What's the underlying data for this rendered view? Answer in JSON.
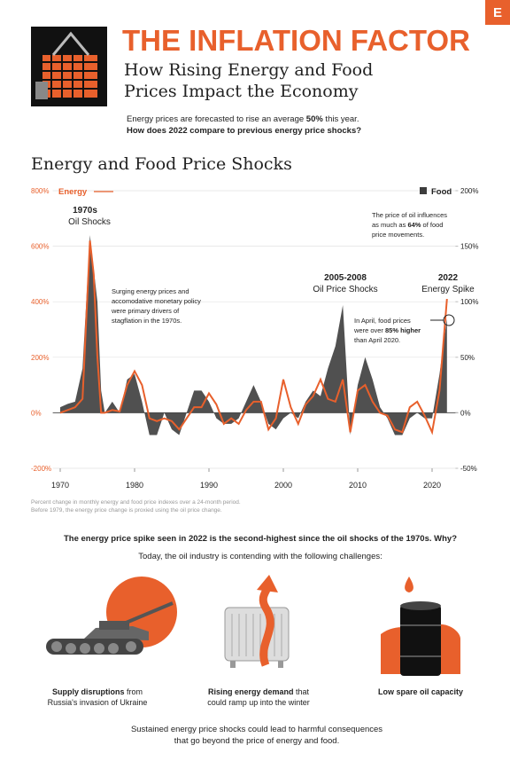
{
  "header": {
    "title": "THE INFLATION FACTOR",
    "subtitle": [
      "How Rising Energy and Food",
      "Prices Impact the Economy"
    ],
    "logo": "E"
  },
  "intro": {
    "line1": [
      "Energy prices are forecasted to rise an average ",
      "50%",
      " this year."
    ],
    "line2": "How does 2022 compare to previous energy price shocks?"
  },
  "chart_data": {
    "type": "line",
    "title": "Energy and Food Price Shocks",
    "x": [
      1970,
      1971,
      1972,
      1973,
      1974,
      1974.5,
      1975,
      1975.5,
      1976,
      1977,
      1978,
      1979,
      1980,
      1981,
      1982,
      1983,
      1984,
      1985,
      1986,
      1987,
      1988,
      1989,
      1990,
      1991,
      1992,
      1993,
      1994,
      1995,
      1996,
      1997,
      1998,
      1999,
      2000,
      2001,
      2002,
      2003,
      2004,
      2005,
      2006,
      2007,
      2008,
      2009,
      2010,
      2011,
      2012,
      2013,
      2014,
      2015,
      2016,
      2017,
      2018,
      2019,
      2020,
      2021,
      2022
    ],
    "series": [
      {
        "name": "Energy",
        "type": "line",
        "color": "#e8602c",
        "axis": "y",
        "values": [
          0,
          10,
          20,
          50,
          620,
          500,
          200,
          0,
          0,
          10,
          5,
          100,
          150,
          100,
          -20,
          -30,
          -20,
          -30,
          -60,
          -20,
          20,
          20,
          70,
          30,
          -40,
          -20,
          -40,
          10,
          40,
          40,
          -60,
          -20,
          120,
          20,
          -40,
          30,
          60,
          120,
          50,
          40,
          120,
          -70,
          80,
          100,
          40,
          0,
          -10,
          -60,
          -70,
          20,
          40,
          -10,
          -70,
          80,
          410
        ]
      },
      {
        "name": "Food",
        "type": "area",
        "color": "#3d3d3d",
        "axis": "y2",
        "values": [
          5,
          8,
          10,
          40,
          160,
          130,
          100,
          20,
          0,
          10,
          0,
          30,
          35,
          10,
          -20,
          -20,
          0,
          -15,
          -20,
          0,
          20,
          20,
          10,
          -5,
          -10,
          -10,
          -5,
          10,
          25,
          10,
          -10,
          -15,
          -5,
          0,
          -5,
          10,
          20,
          15,
          40,
          60,
          97,
          -20,
          25,
          50,
          30,
          5,
          -5,
          -20,
          -20,
          -5,
          0,
          -5,
          -5,
          35,
          85
        ]
      }
    ],
    "xlim": [
      1969,
      2023.5
    ],
    "xticks": [
      1970,
      1980,
      1990,
      2000,
      2010,
      2020
    ],
    "ylim": [
      -200,
      800
    ],
    "yticks": [
      {
        "value": -200,
        "label": "-200%"
      },
      {
        "value": 0,
        "label": "0%"
      },
      {
        "value": 200,
        "label": "200%"
      },
      {
        "value": 400,
        "label": "400%"
      },
      {
        "value": 600,
        "label": "600%"
      },
      {
        "value": 800,
        "label": "800%"
      }
    ],
    "y2lim": [
      -50,
      200
    ],
    "y2ticks": [
      {
        "value": -50,
        "label": "-50%"
      },
      {
        "value": 0,
        "label": "0%"
      },
      {
        "value": 50,
        "label": "50%"
      },
      {
        "value": 100,
        "label": "100%"
      },
      {
        "value": 150,
        "label": "150%"
      },
      {
        "value": 200,
        "label": "200%"
      }
    ],
    "grid": true,
    "annotations": {
      "seventies": [
        "1970s",
        "Oil Shocks"
      ],
      "twothousands": [
        "2005-2008",
        "Oil Price Shocks"
      ],
      "spike": [
        "2022",
        "Energy Spike"
      ],
      "stagflation": [
        "Surging energy prices and",
        "accomodative monetary policy",
        "were primary drivers of",
        "stagflation in the 1970s."
      ],
      "oil": [
        [
          "The price of oil influences"
        ],
        [
          "as much as ",
          "64%",
          " of food"
        ],
        [
          "price movements."
        ]
      ],
      "april": [
        [
          "In April, food prices"
        ],
        [
          "were over ",
          "85% higher"
        ],
        [
          "than April 2020."
        ]
      ]
    },
    "footnote": [
      "Percent change in monthly energy and food price indexes over a 24-month period.",
      "Before 1979, the energy price change is proxied using the oil price change."
    ]
  },
  "outro": {
    "headline": "The energy price spike seen in 2022 is the second-highest since the oil shocks of the 1970s. Why?",
    "lead": "Today, the oil industry is contending with the following challenges:",
    "challenges": [
      [
        [
          "Supply disruptions",
          " from"
        ],
        [
          "Russia's invasion of Ukraine"
        ]
      ],
      [
        [
          "Rising energy demand",
          " that"
        ],
        [
          "could ramp up into the winter"
        ]
      ],
      [
        [
          "Low spare oil capacity"
        ]
      ]
    ],
    "closing": [
      "Sustained energy price shocks could lead to harmful consequences",
      "that go beyond the price of energy and food."
    ]
  }
}
